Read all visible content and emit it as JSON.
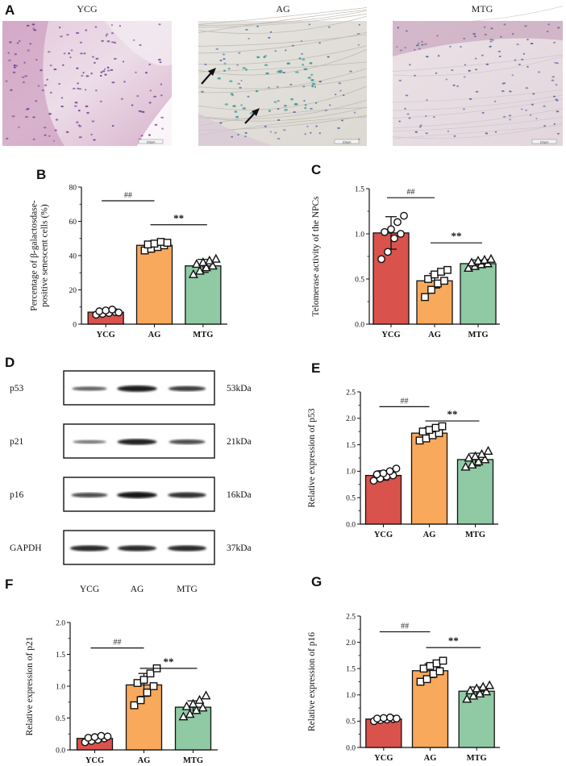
{
  "panel_labels": {
    "A": "A",
    "B": "B",
    "C": "C",
    "D": "D",
    "E": "E",
    "F": "F",
    "G": "G"
  },
  "histology": {
    "groups": [
      "YCG",
      "AG",
      "MTG"
    ],
    "scale_bar_labels": [
      "100μm",
      "100μm",
      "100μm"
    ]
  },
  "colors": {
    "YCG": "#d9524c",
    "AG": "#f8a95b",
    "MTG": "#8fcaa5"
  },
  "western_blot": {
    "bands": [
      {
        "protein": "p53",
        "kda": "53kDa",
        "intensity": [
          0.45,
          0.95,
          0.7
        ]
      },
      {
        "protein": "p21",
        "kda": "21kDa",
        "intensity": [
          0.3,
          0.9,
          0.6
        ]
      },
      {
        "protein": "p16",
        "kda": "16kDa",
        "intensity": [
          0.6,
          0.98,
          0.8
        ]
      },
      {
        "protein": "GAPDH",
        "kda": "37kDa",
        "intensity": [
          0.85,
          0.85,
          0.85
        ]
      }
    ],
    "lanes": [
      "YCG",
      "AG",
      "MTG"
    ]
  },
  "chart_data": [
    {
      "panel": "B",
      "type": "bar",
      "categories": [
        "YCG",
        "AG",
        "MTG"
      ],
      "values": [
        7,
        46,
        34
      ],
      "errors": [
        1.3,
        2.5,
        3.8
      ],
      "points": [
        [
          5.5,
          6,
          6.5,
          7,
          7.5,
          8,
          8.5,
          6.8
        ],
        [
          43,
          44,
          45,
          46,
          46.5,
          47,
          48,
          47.5
        ],
        [
          29,
          31,
          33,
          34,
          35,
          36,
          37,
          38
        ]
      ],
      "markers": [
        "circle",
        "square",
        "triangle"
      ],
      "ylabel": "Percentage of β-galactosdase-\npositive senescent cells (%)",
      "ylim": [
        0,
        80
      ],
      "yticks": [
        0,
        20,
        40,
        60,
        80
      ],
      "sig": [
        {
          "from": 0,
          "to": 1,
          "label": "##",
          "y": 72
        },
        {
          "from": 1,
          "to": 2,
          "label": "**",
          "y": 58
        }
      ]
    },
    {
      "panel": "C",
      "type": "bar",
      "categories": [
        "YCG",
        "AG",
        "MTG"
      ],
      "values": [
        1.01,
        0.48,
        0.67
      ],
      "errors": [
        0.18,
        0.08,
        0.04
      ],
      "points": [
        [
          0.72,
          0.8,
          0.95,
          1.0,
          1.02,
          1.05,
          1.13,
          1.2
        ],
        [
          0.3,
          0.38,
          0.45,
          0.48,
          0.5,
          0.55,
          0.58,
          0.6
        ],
        [
          0.62,
          0.64,
          0.66,
          0.67,
          0.68,
          0.7,
          0.71,
          0.72
        ]
      ],
      "markers": [
        "circle",
        "square",
        "triangle"
      ],
      "ylabel": "Telomerase activity of the NPCs",
      "ylim": [
        0,
        1.5
      ],
      "yticks": [
        0,
        0.5,
        1.0,
        1.5
      ],
      "tick_labels": [
        "0.0",
        "0.5",
        "1.0",
        "1.5"
      ],
      "sig": [
        {
          "from": 0,
          "to": 1,
          "label": "##",
          "y": 1.4
        },
        {
          "from": 1,
          "to": 2,
          "label": "**",
          "y": 0.9
        }
      ]
    },
    {
      "panel": "E",
      "type": "bar",
      "categories": [
        "YCG",
        "AG",
        "MTG"
      ],
      "values": [
        0.92,
        1.72,
        1.22
      ],
      "errors": [
        0.09,
        0.1,
        0.12
      ],
      "points": [
        [
          0.82,
          0.86,
          0.9,
          0.92,
          0.94,
          0.96,
          1.0,
          1.05
        ],
        [
          1.58,
          1.62,
          1.68,
          1.72,
          1.75,
          1.78,
          1.82,
          1.85
        ],
        [
          1.08,
          1.12,
          1.18,
          1.22,
          1.25,
          1.28,
          1.32,
          1.38
        ]
      ],
      "markers": [
        "circle",
        "square",
        "triangle"
      ],
      "ylabel": "Relative expression of p53",
      "ylim": [
        0,
        2.5
      ],
      "yticks": [
        0,
        0.5,
        1.0,
        1.5,
        2.0,
        2.5
      ],
      "tick_labels": [
        "0.0",
        "0.5",
        "1.0",
        "1.5",
        "2.0",
        "2.5"
      ],
      "sig": [
        {
          "from": 0,
          "to": 1,
          "label": "##",
          "y": 2.22
        },
        {
          "from": 1,
          "to": 2,
          "label": "**",
          "y": 1.95
        }
      ]
    },
    {
      "panel": "F",
      "type": "bar",
      "categories": [
        "YCG",
        "AG",
        "MTG"
      ],
      "values": [
        0.18,
        1.02,
        0.67
      ],
      "errors": [
        0.04,
        0.18,
        0.1
      ],
      "points": [
        [
          0.12,
          0.14,
          0.16,
          0.18,
          0.19,
          0.2,
          0.22,
          0.21
        ],
        [
          0.7,
          0.78,
          0.9,
          1.0,
          1.05,
          1.1,
          1.2,
          1.28
        ],
        [
          0.52,
          0.56,
          0.62,
          0.66,
          0.68,
          0.72,
          0.78,
          0.85
        ]
      ],
      "markers": [
        "circle",
        "square",
        "triangle"
      ],
      "ylabel": "Relative expression of p21",
      "ylim": [
        0,
        2.0
      ],
      "yticks": [
        0,
        0.5,
        1.0,
        1.5,
        2.0
      ],
      "tick_labels": [
        "0.0",
        "0.5",
        "1.0",
        "1.5",
        "2.0"
      ],
      "sig": [
        {
          "from": 0,
          "to": 1,
          "label": "##",
          "y": 1.6
        },
        {
          "from": 1,
          "to": 2,
          "label": "**",
          "y": 1.28
        }
      ]
    },
    {
      "panel": "G",
      "type": "bar",
      "categories": [
        "YCG",
        "AG",
        "MTG"
      ],
      "values": [
        0.54,
        1.46,
        1.07
      ],
      "errors": [
        0.03,
        0.13,
        0.08
      ],
      "points": [
        [
          0.5,
          0.52,
          0.53,
          0.54,
          0.55,
          0.56,
          0.57,
          0.55
        ],
        [
          1.25,
          1.3,
          1.4,
          1.45,
          1.5,
          1.55,
          1.6,
          1.65
        ],
        [
          0.92,
          0.98,
          1.02,
          1.06,
          1.08,
          1.12,
          1.15,
          1.18
        ]
      ],
      "markers": [
        "circle",
        "square",
        "triangle"
      ],
      "ylabel": "Relative expression of p16",
      "ylim": [
        0,
        2.5
      ],
      "yticks": [
        0,
        0.5,
        1.0,
        1.5,
        2.0,
        2.5
      ],
      "tick_labels": [
        "0.0",
        "0.5",
        "1.0",
        "1.5",
        "2.0",
        "2.5"
      ],
      "sig": [
        {
          "from": 0,
          "to": 1,
          "label": "##",
          "y": 2.2
        },
        {
          "from": 1,
          "to": 2,
          "label": "**",
          "y": 1.9
        }
      ]
    }
  ]
}
